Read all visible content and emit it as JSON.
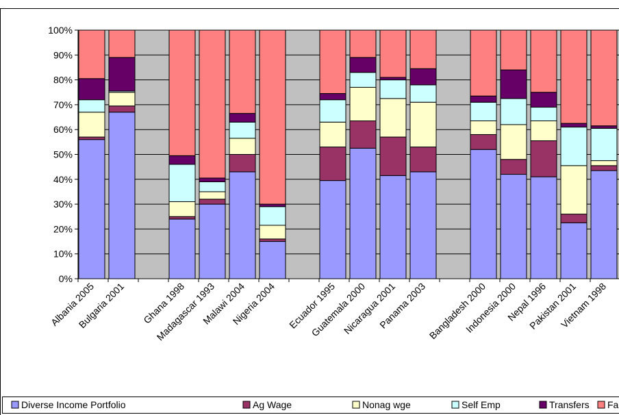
{
  "chart_data": {
    "type": "stacked_bar",
    "categories": [
      "Albania 2005",
      "Bulgaria 2001",
      null,
      "Ghana 1998",
      "Madagascar 1993",
      "Malawi 2004",
      "Nigeria 2004",
      null,
      "Ecuador 1995",
      "Guatemala 2000",
      "Nicaragua 2001",
      "Panama 2003",
      null,
      "Bangladesh 2000",
      "Indonesia 2000",
      "Nepal 1996",
      "Pakistan 2001",
      "Vietnam 1998"
    ],
    "series": [
      {
        "name": "Diverse Income Portfolio",
        "color": "#9999ff",
        "values": [
          56,
          67,
          null,
          24,
          30,
          43,
          15,
          null,
          39.5,
          52.5,
          41.5,
          43,
          null,
          52,
          42,
          41,
          22.5,
          43.5
        ]
      },
      {
        "name": "Ag Wage",
        "color": "#993366",
        "values": [
          1,
          2.5,
          null,
          1,
          2,
          7,
          1,
          null,
          13.5,
          11,
          15.5,
          10,
          null,
          6,
          6,
          14.5,
          3.5,
          2
        ]
      },
      {
        "name": "Nonag wge",
        "color": "#ffffcc",
        "values": [
          10,
          5.5,
          null,
          6,
          3,
          6.5,
          5.5,
          null,
          10,
          13.5,
          15.5,
          18,
          null,
          5.5,
          14,
          8,
          19.5,
          2
        ]
      },
      {
        "name": "Self Emp",
        "color": "#ccffff",
        "values": [
          5,
          0.5,
          null,
          15,
          4,
          6.5,
          7.5,
          null,
          9,
          6,
          7.5,
          7,
          null,
          7.5,
          10.5,
          5.5,
          15.5,
          13
        ]
      },
      {
        "name": "Transfers",
        "color": "#660066",
        "values": [
          8.5,
          13.5,
          null,
          3.5,
          1.5,
          3.5,
          1,
          null,
          2.5,
          6,
          1,
          6.5,
          null,
          2.5,
          11.5,
          6,
          1.5,
          1
        ]
      },
      {
        "name": "Farm",
        "color": "#ff8080",
        "values": [
          19.5,
          11,
          null,
          50.5,
          59.5,
          33.5,
          70,
          null,
          25.5,
          11,
          19,
          15.5,
          null,
          26.5,
          16,
          25,
          37.5,
          38.5
        ]
      }
    ],
    "ylim": [
      0,
      100
    ],
    "yticks": [
      {
        "value": 0,
        "label": "0%"
      },
      {
        "value": 10,
        "label": "10%"
      },
      {
        "value": 20,
        "label": "20%"
      },
      {
        "value": 30,
        "label": "30%"
      },
      {
        "value": 40,
        "label": "40%"
      },
      {
        "value": 50,
        "label": "50%"
      },
      {
        "value": 60,
        "label": "60%"
      },
      {
        "value": 70,
        "label": "70%"
      },
      {
        "value": 80,
        "label": "80%"
      },
      {
        "value": 90,
        "label": "90%"
      },
      {
        "value": 100,
        "label": "100%"
      }
    ],
    "grid": true,
    "legend": "bottom"
  }
}
